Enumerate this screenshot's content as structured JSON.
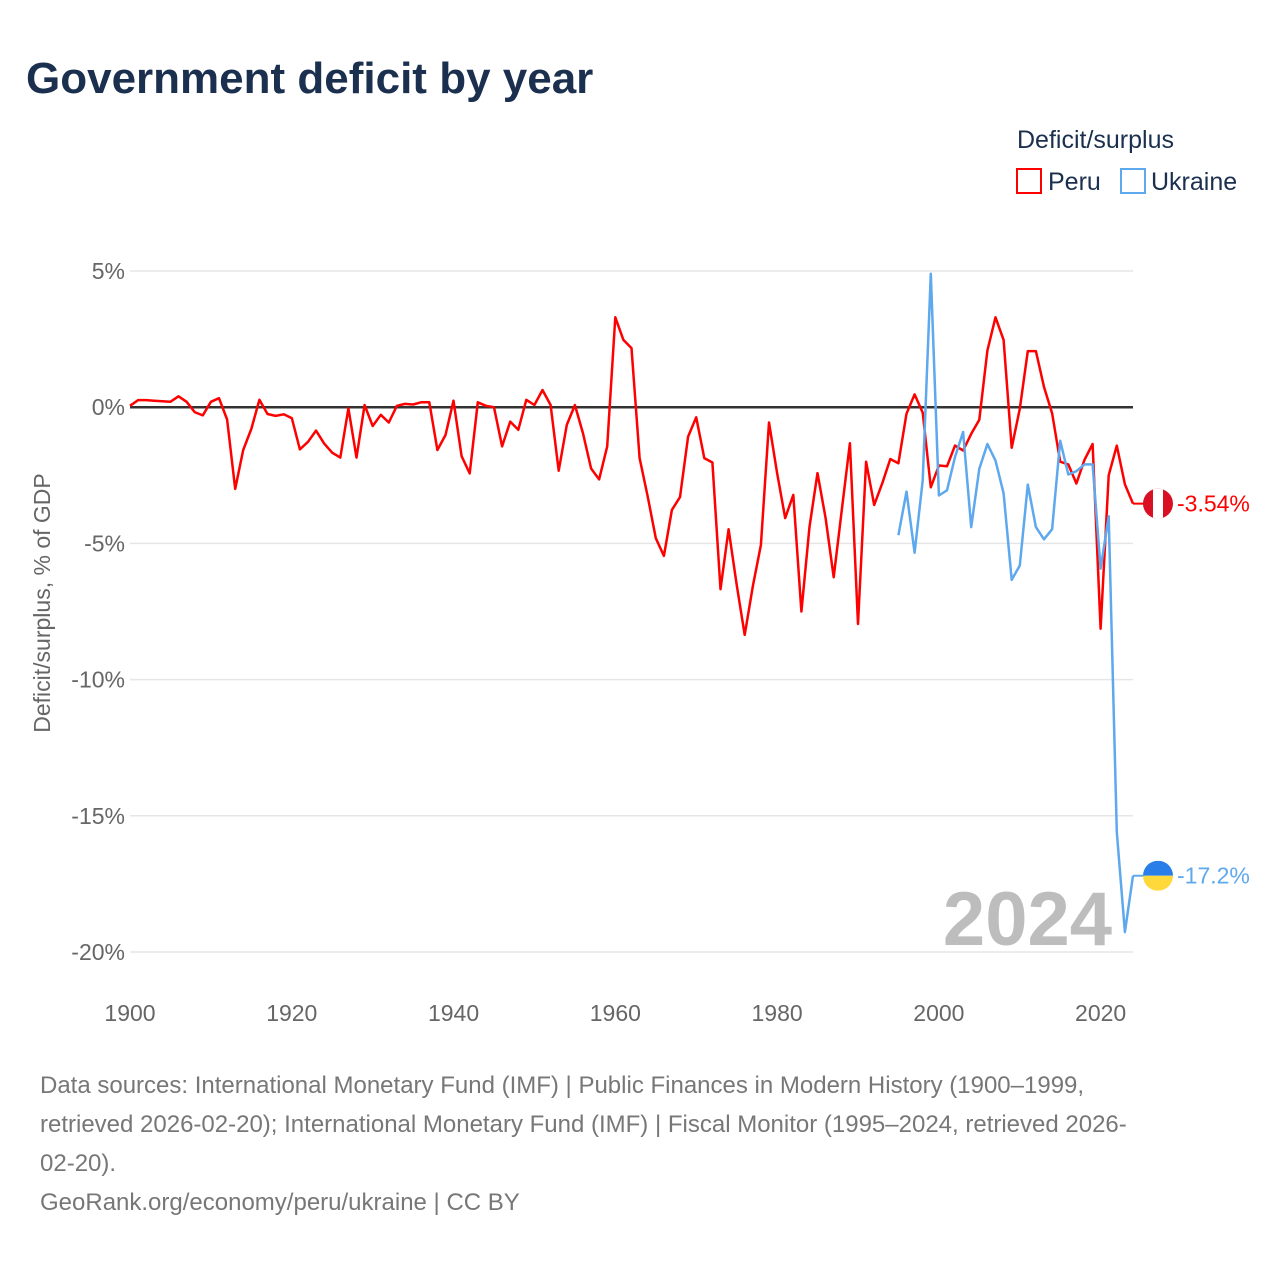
{
  "title": "Government deficit by year",
  "legend": {
    "title": "Deficit/surplus",
    "items": [
      {
        "name": "Peru",
        "color": "#ff0000"
      },
      {
        "name": "Ukraine",
        "color": "#5ea8ee"
      }
    ]
  },
  "footer": {
    "line1": "Data sources: International Monetary Fund (IMF) | Public Finances in Modern History (1900–1999,",
    "line2": "retrieved 2026-02-20); International Monetary Fund (IMF) | Fiscal Monitor (1995–2024, retrieved 2026-",
    "line3": "02-20).",
    "line4": "GeoRank.org/economy/peru/ukraine | CC BY"
  },
  "chart_data": {
    "type": "line",
    "title": "Government deficit by year",
    "ylabel": "Deficit/surplus, % of GDP",
    "xlabel": "",
    "xlim": [
      1900,
      2024
    ],
    "ylim": [
      -20,
      5
    ],
    "xticks": [
      {
        "v": 1900,
        "label": "1900"
      },
      {
        "v": 1920,
        "label": "1920"
      },
      {
        "v": 1940,
        "label": "1940"
      },
      {
        "v": 1960,
        "label": "1960"
      },
      {
        "v": 1980,
        "label": "1980"
      },
      {
        "v": 2000,
        "label": "2000"
      },
      {
        "v": 2020,
        "label": "2020"
      }
    ],
    "yticks": [
      {
        "v": 5,
        "label": "5%"
      },
      {
        "v": 0,
        "label": "0%"
      },
      {
        "v": -5,
        "label": "-5%"
      },
      {
        "v": -10,
        "label": "-10%"
      },
      {
        "v": -15,
        "label": "-15%"
      },
      {
        "v": -20,
        "label": "-20%"
      }
    ],
    "current_year": "2024",
    "series": [
      {
        "name": "Peru",
        "color": "#ff0000",
        "end_label": "-3.54%",
        "start": 1900,
        "values": [
          0.05,
          0.26,
          0.26,
          0.24,
          0.22,
          0.2,
          0.4,
          0.2,
          -0.18,
          -0.3,
          0.2,
          0.33,
          -0.45,
          -3.0,
          -1.57,
          -0.8,
          0.27,
          -0.25,
          -0.32,
          -0.26,
          -0.4,
          -1.55,
          -1.27,
          -0.86,
          -1.33,
          -1.67,
          -1.85,
          -0.04,
          -1.85,
          0.08,
          -0.69,
          -0.28,
          -0.56,
          0.05,
          0.12,
          0.1,
          0.18,
          0.18,
          -1.57,
          -1.02,
          0.24,
          -1.8,
          -2.43,
          0.18,
          0.05,
          0,
          -1.44,
          -0.53,
          -0.83,
          0.27,
          0.08,
          0.63,
          0.08,
          -2.33,
          -0.65,
          0.08,
          -0.96,
          -2.25,
          -2.65,
          -1.44,
          3.3,
          2.47,
          2.17,
          -1.87,
          -3.28,
          -4.81,
          -5.46,
          -3.77,
          -3.3,
          -1.08,
          -0.37,
          -1.87,
          -2.03,
          -6.68,
          -4.48,
          -6.52,
          -8.36,
          -6.58,
          -5.06,
          -0.56,
          -2.42,
          -4.07,
          -3.22,
          -7.5,
          -4.39,
          -2.42,
          -4.07,
          -6.24,
          -3.77,
          -1.32,
          -7.96,
          -2.0,
          -3.59,
          -2.79,
          -1.9,
          -2.06,
          -0.24,
          0.47,
          -0.2,
          -2.94,
          -2.14,
          -2.17,
          -1.41,
          -1.59,
          -0.98,
          -0.46,
          2.08,
          3.3,
          2.47,
          -1.49,
          -0.06,
          2.06,
          2.06,
          0.74,
          -0.22,
          -2.0,
          -2.1,
          -2.8,
          -1.93,
          -1.35,
          -8.13,
          -2.5,
          -1.41,
          -2.83,
          -3.54
        ]
      },
      {
        "name": "Ukraine",
        "color": "#5ea8ee",
        "end_label": "-17.2%",
        "start": 1995,
        "values": [
          -4.7,
          -3.1,
          -5.34,
          -2.69,
          4.9,
          -3.24,
          -3.05,
          -1.83,
          -0.91,
          -4.4,
          -2.26,
          -1.35,
          -1.96,
          -3.16,
          -6.34,
          -5.81,
          -2.84,
          -4.4,
          -4.85,
          -4.48,
          -1.23,
          -2.47,
          -2.35,
          -2.1,
          -2.1,
          -5.93,
          -4.0,
          -15.6,
          -19.27,
          -17.2
        ]
      }
    ]
  }
}
